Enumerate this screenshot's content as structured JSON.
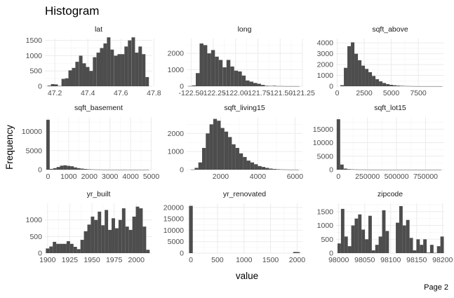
{
  "page": {
    "footer": "Page 2"
  },
  "chart_data": {
    "type": "bar",
    "title": "Histogram",
    "xlabel": "value",
    "ylabel": "Frequency",
    "facets": [
      {
        "name": "lat",
        "xlim": [
          47.14,
          47.79
        ],
        "ylim": [
          0,
          1560
        ],
        "xticks": [
          47.2,
          47.4,
          47.6,
          47.8
        ],
        "xtick_labels": [
          "47.2",
          "47.4",
          "47.6",
          "47.8"
        ],
        "yticks": [
          0,
          500,
          1000,
          1500
        ],
        "ytick_labels": [
          "0",
          "500",
          "1000",
          "1500"
        ],
        "bin_width": 0.0212,
        "bins_x": [
          47.166,
          47.187,
          47.208,
          47.229,
          47.251,
          47.272,
          47.293,
          47.314,
          47.335,
          47.357,
          47.378,
          47.399,
          47.42,
          47.441,
          47.463,
          47.484,
          47.505,
          47.526,
          47.547,
          47.569,
          47.59,
          47.611,
          47.632,
          47.653,
          47.675,
          47.696,
          47.717,
          47.738,
          47.759
        ],
        "values": [
          20,
          70,
          60,
          10,
          240,
          260,
          520,
          600,
          800,
          1000,
          750,
          630,
          500,
          950,
          1100,
          1250,
          1400,
          1600,
          1200,
          1000,
          1050,
          1050,
          1300,
          1500,
          1600,
          1100,
          1300,
          1050,
          300
        ]
      },
      {
        "name": "long",
        "xlim": [
          -122.55,
          -121.25
        ],
        "ylim": [
          0,
          2900
        ],
        "xticks": [
          -122.5,
          -122.25,
          -122.0,
          -121.75,
          -121.5,
          -121.25
        ],
        "xtick_labels": [
          "-122.50",
          "-122.25",
          "-122.00",
          "-121.75",
          "-121.50",
          "-121.25"
        ],
        "yticks": [
          0,
          1000,
          2000
        ],
        "ytick_labels": [
          "0",
          "1000",
          "2000"
        ],
        "bin_width": 0.0431,
        "bins_x": [
          -122.512,
          -122.469,
          -122.426,
          -122.383,
          -122.34,
          -122.297,
          -122.254,
          -122.211,
          -122.168,
          -122.124,
          -122.081,
          -122.038,
          -121.995,
          -121.952,
          -121.909,
          -121.866,
          -121.823,
          -121.78,
          -121.737,
          -121.694,
          -121.651,
          -121.608,
          -121.564,
          -121.521,
          -121.478,
          -121.435,
          -121.392,
          -121.349,
          -121.306
        ],
        "values": [
          10,
          50,
          800,
          2600,
          2500,
          2000,
          2200,
          1800,
          1600,
          1150,
          1600,
          1200,
          950,
          900,
          650,
          350,
          280,
          200,
          150,
          80,
          30,
          20,
          30,
          10,
          10,
          5,
          5,
          5,
          5
        ]
      },
      {
        "name": "sqft_above",
        "xlim": [
          -100,
          9900
        ],
        "ylim": [
          0,
          4400
        ],
        "xticks": [
          0,
          2500,
          5000,
          7500
        ],
        "xtick_labels": [
          "0",
          "2500",
          "5000",
          "7500"
        ],
        "yticks": [
          0,
          1000,
          2000,
          3000,
          4000
        ],
        "ytick_labels": [
          "0",
          "1000",
          "2000",
          "3000",
          "4000"
        ],
        "bin_width": 325,
        "bins_x": [
          455,
          780,
          1105,
          1430,
          1755,
          2080,
          2405,
          2730,
          3055,
          3380,
          3705,
          4030,
          4355,
          4680,
          5005,
          5330,
          5655,
          5980,
          6305,
          6630,
          6955,
          7280,
          7605,
          7930,
          8255,
          8580,
          8905,
          9230,
          9555
        ],
        "values": [
          100,
          1700,
          3700,
          4050,
          3000,
          2400,
          1900,
          1600,
          1300,
          950,
          650,
          450,
          300,
          200,
          130,
          90,
          60,
          40,
          25,
          15,
          10,
          5,
          3,
          2,
          2,
          1,
          1,
          1,
          1
        ]
      },
      {
        "name": "sqft_basement",
        "xlim": [
          -150,
          5050
        ],
        "ylim": [
          0,
          13800
        ],
        "xticks": [
          0,
          1000,
          2000,
          3000,
          4000,
          5000
        ],
        "xtick_labels": [
          "0",
          "1000",
          "2000",
          "3000",
          "4000",
          "5000"
        ],
        "yticks": [
          0,
          5000,
          10000
        ],
        "ytick_labels": [
          "0",
          "5000",
          "10000"
        ],
        "bin_width": 166,
        "bins_x": [
          0,
          166,
          332,
          498,
          664,
          830,
          996,
          1162,
          1328,
          1494,
          1660,
          1826,
          1992,
          2158,
          2324,
          2490,
          2656,
          2822,
          2988,
          3154,
          3320,
          3486,
          3652,
          3818,
          3984,
          4150,
          4316,
          4482,
          4648,
          4814
        ],
        "values": [
          13100,
          200,
          400,
          700,
          1050,
          1150,
          1000,
          900,
          600,
          400,
          280,
          180,
          110,
          70,
          40,
          30,
          20,
          10,
          5,
          5,
          3,
          2,
          2,
          1,
          1,
          1,
          1,
          1,
          1,
          1
        ]
      },
      {
        "name": "sqft_living15",
        "xlim": [
          170,
          6400
        ],
        "ylim": [
          0,
          2900
        ],
        "xticks": [
          2000,
          4000,
          6000
        ],
        "xtick_labels": [
          "2000",
          "4000",
          "6000"
        ],
        "yticks": [
          0,
          1000,
          2000
        ],
        "ytick_labels": [
          "0",
          "1000",
          "2000"
        ],
        "bin_width": 200,
        "bins_x": [
          500,
          700,
          900,
          1100,
          1300,
          1500,
          1700,
          1900,
          2100,
          2300,
          2500,
          2700,
          2900,
          3100,
          3300,
          3500,
          3700,
          3900,
          4100,
          4300,
          4500,
          4700,
          4900,
          5100,
          5300,
          5500,
          5700,
          5900,
          6100
        ],
        "values": [
          10,
          100,
          400,
          1200,
          2000,
          2500,
          2800,
          2700,
          2300,
          2100,
          1800,
          1400,
          1200,
          900,
          700,
          500,
          400,
          300,
          200,
          150,
          100,
          60,
          40,
          25,
          15,
          10,
          5,
          5,
          3
        ]
      },
      {
        "name": "sqft_lot15",
        "xlim": [
          -20000,
          910000
        ],
        "ylim": [
          0,
          19500
        ],
        "xticks": [
          0,
          250000,
          500000,
          750000
        ],
        "xtick_labels": [
          "0",
          "250000",
          "500000",
          "750000"
        ],
        "yticks": [
          0,
          5000,
          10000,
          15000
        ],
        "ytick_labels": [
          "0",
          "5000",
          "10000",
          "15000"
        ],
        "bin_width": 30000,
        "bins_x": [
          0,
          30000,
          60000,
          90000,
          120000,
          150000,
          180000,
          210000,
          240000,
          270000,
          300000,
          330000,
          360000,
          390000,
          420000,
          450000,
          480000,
          510000,
          540000,
          570000,
          600000,
          630000,
          660000,
          690000,
          720000,
          750000,
          780000,
          810000,
          840000,
          870000
        ],
        "values": [
          18700,
          1900,
          400,
          200,
          120,
          80,
          60,
          50,
          30,
          20,
          15,
          10,
          8,
          5,
          4,
          3,
          3,
          2,
          2,
          1,
          1,
          1,
          1,
          1,
          1,
          1,
          1,
          1,
          1,
          1
        ]
      },
      {
        "name": "yr_built",
        "xlim": [
          1897,
          2018
        ],
        "ylim": [
          0,
          1500
        ],
        "xticks": [
          1900,
          1925,
          1950,
          1975,
          2000
        ],
        "xtick_labels": [
          "1900",
          "1925",
          "1950",
          "1975",
          "2000"
        ],
        "yticks": [
          0,
          500,
          1000
        ],
        "ytick_labels": [
          "0",
          "500",
          "1000"
        ],
        "bin_width": 3.9,
        "bins_x": [
          1900,
          1903.9,
          1907.8,
          1911.7,
          1915.6,
          1919.5,
          1923.4,
          1927.3,
          1931.2,
          1935.1,
          1939.0,
          1942.9,
          1946.8,
          1950.7,
          1954.6,
          1958.5,
          1962.4,
          1966.3,
          1970.2,
          1974.1,
          1978.0,
          1981.9,
          1985.8,
          1989.7,
          1993.6,
          1997.5,
          2001.4,
          2005.3,
          2009.2,
          2013.1
        ],
        "values": [
          140,
          200,
          340,
          280,
          280,
          280,
          360,
          280,
          190,
          120,
          400,
          660,
          860,
          1100,
          1000,
          1250,
          840,
          1300,
          700,
          1050,
          750,
          1000,
          1350,
          800,
          700,
          1100,
          1400,
          1350,
          800,
          100
        ]
      },
      {
        "name": "yr_renovated",
        "xlim": [
          -80,
          2100
        ],
        "ylim": [
          0,
          21800
        ],
        "xticks": [
          0,
          500,
          1000,
          1500,
          2000
        ],
        "xtick_labels": [
          "0",
          "500",
          "1000",
          "1500",
          "2000"
        ],
        "yticks": [
          0,
          5000,
          10000,
          15000,
          20000
        ],
        "ytick_labels": [
          "0",
          "5000",
          "10000",
          "15000",
          "20000"
        ],
        "bin_width": 70,
        "bins_x": [
          0,
          70,
          140,
          210,
          280,
          350,
          420,
          490,
          560,
          630,
          700,
          770,
          840,
          910,
          980,
          1050,
          1120,
          1190,
          1260,
          1330,
          1400,
          1470,
          1540,
          1610,
          1680,
          1750,
          1820,
          1890,
          1960,
          2015
        ],
        "values": [
          20700,
          0,
          0,
          0,
          0,
          0,
          0,
          0,
          0,
          0,
          0,
          0,
          0,
          0,
          0,
          0,
          0,
          0,
          0,
          0,
          0,
          0,
          0,
          0,
          0,
          0,
          0,
          0,
          500,
          450
        ]
      },
      {
        "name": "zipcode",
        "xlim": [
          97995,
          98203
        ],
        "ylim": [
          0,
          1800
        ],
        "xticks": [
          98000,
          98050,
          98100,
          98150,
          98200
        ],
        "xtick_labels": [
          "98000",
          "98050",
          "98100",
          "98150",
          "98200"
        ],
        "yticks": [
          0,
          500,
          1000,
          1500
        ],
        "ytick_labels": [
          "0",
          "500",
          "1000",
          "1500"
        ],
        "bin_width": 6.6,
        "bins_x": [
          98001,
          98007.6,
          98014.2,
          98020.8,
          98027.4,
          98034,
          98040.6,
          98047.2,
          98053.8,
          98060.4,
          98067,
          98073.6,
          98080.2,
          98086.8,
          98093.4,
          98100,
          98106.6,
          98113.2,
          98119.8,
          98126.4,
          98133,
          98139.6,
          98146.2,
          98152.8,
          98159.4,
          98166,
          98172.6,
          98179.2,
          98185.8,
          98192.4,
          98199
        ],
        "values": [
          350,
          1600,
          600,
          250,
          1000,
          1250,
          1400,
          850,
          500,
          1350,
          100,
          300,
          600,
          1550,
          800,
          0,
          0,
          1100,
          1700,
          1000,
          1200,
          550,
          100,
          500,
          300,
          500,
          20,
          300,
          10,
          250,
          600
        ]
      }
    ]
  }
}
